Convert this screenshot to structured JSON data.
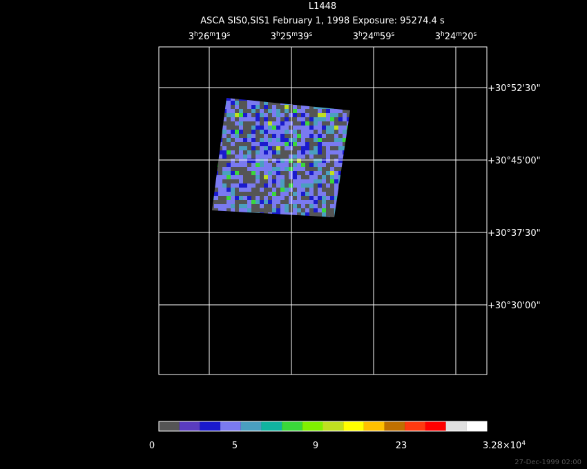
{
  "header": {
    "title": "L1448",
    "subtitle": "ASCA SIS0,SIS1 February 1, 1998 Exposure: 95274.4 s"
  },
  "ra_ticks": [
    {
      "parts": [
        "3",
        "h",
        "26",
        "m",
        "19",
        "s"
      ]
    },
    {
      "parts": [
        "3",
        "h",
        "25",
        "m",
        "39",
        "s"
      ]
    },
    {
      "parts": [
        "3",
        "h",
        "24",
        "m",
        "59",
        "s"
      ]
    },
    {
      "parts": [
        "3",
        "h",
        "24",
        "m",
        "20",
        "s"
      ]
    }
  ],
  "dec_ticks": [
    "+30°52'30\"",
    "+30°45'00\"",
    "+30°37'30\"",
    "+30°30'00\""
  ],
  "colorbar": {
    "colors": [
      "#555555",
      "#5a3cc0",
      "#1a1acd",
      "#7a7af0",
      "#4a9fc0",
      "#10b4a0",
      "#3ad83a",
      "#80f000",
      "#c0e020",
      "#ffff00",
      "#ffc000",
      "#c07000",
      "#ff3a10",
      "#ff0000",
      "#e0e0e0",
      "#ffffff"
    ],
    "labels": [
      {
        "parts": [
          "0"
        ]
      },
      {
        "parts": [
          "5"
        ]
      },
      {
        "parts": [
          "9"
        ]
      },
      {
        "parts": [
          "23"
        ]
      },
      {
        "parts": [
          "3.28×10",
          "4"
        ]
      }
    ]
  },
  "footer": {
    "timestamp": "27-Dec-1999 02:00"
  }
}
